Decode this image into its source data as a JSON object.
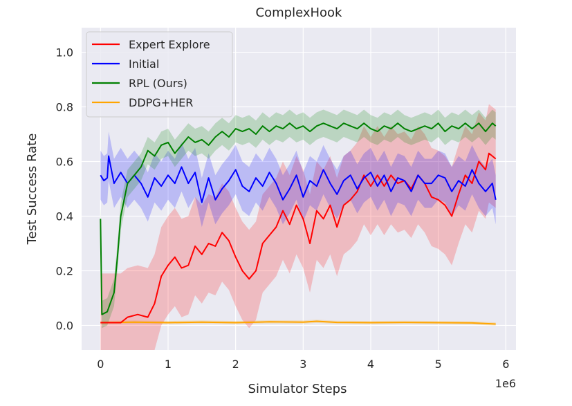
{
  "chart_data": {
    "type": "line",
    "title": "ComplexHook",
    "xlabel": "Simulator Steps",
    "ylabel": "Test Success Rate",
    "x_multiplier_label": "1e6",
    "xlim": [
      -0.28,
      6.15
    ],
    "ylim": [
      -0.09,
      1.09
    ],
    "x_ticks": [
      0,
      1,
      2,
      3,
      4,
      5,
      6
    ],
    "y_ticks": [
      0.0,
      0.2,
      0.4,
      0.6,
      0.8,
      1.0
    ],
    "x_tick_labels": [
      "0",
      "1",
      "2",
      "3",
      "4",
      "5",
      "6"
    ],
    "y_tick_labels": [
      "0.0",
      "0.2",
      "0.4",
      "0.6",
      "0.8",
      "1.0"
    ],
    "grid": true,
    "background": "#eaeaf2",
    "legend_position": "top-left",
    "series": [
      {
        "name": "Expert Explore",
        "color": "#ff0000",
        "band": 0.18,
        "points": [
          [
            0,
            0.01
          ],
          [
            0.3,
            0.01
          ],
          [
            0.4,
            0.03
          ],
          [
            0.55,
            0.04
          ],
          [
            0.7,
            0.03
          ],
          [
            0.8,
            0.08
          ],
          [
            0.9,
            0.18
          ],
          [
            1.0,
            0.22
          ],
          [
            1.1,
            0.25
          ],
          [
            1.2,
            0.21
          ],
          [
            1.3,
            0.22
          ],
          [
            1.4,
            0.29
          ],
          [
            1.5,
            0.26
          ],
          [
            1.6,
            0.3
          ],
          [
            1.7,
            0.29
          ],
          [
            1.8,
            0.34
          ],
          [
            1.9,
            0.31
          ],
          [
            2.0,
            0.25
          ],
          [
            2.1,
            0.2
          ],
          [
            2.2,
            0.17
          ],
          [
            2.3,
            0.2
          ],
          [
            2.4,
            0.3
          ],
          [
            2.5,
            0.33
          ],
          [
            2.6,
            0.36
          ],
          [
            2.7,
            0.42
          ],
          [
            2.8,
            0.37
          ],
          [
            2.9,
            0.44
          ],
          [
            3.0,
            0.39
          ],
          [
            3.1,
            0.3
          ],
          [
            3.2,
            0.42
          ],
          [
            3.3,
            0.39
          ],
          [
            3.4,
            0.44
          ],
          [
            3.5,
            0.36
          ],
          [
            3.6,
            0.44
          ],
          [
            3.7,
            0.46
          ],
          [
            3.8,
            0.49
          ],
          [
            3.9,
            0.55
          ],
          [
            4.0,
            0.51
          ],
          [
            4.1,
            0.55
          ],
          [
            4.2,
            0.51
          ],
          [
            4.3,
            0.55
          ],
          [
            4.4,
            0.52
          ],
          [
            4.5,
            0.53
          ],
          [
            4.6,
            0.5
          ],
          [
            4.7,
            0.55
          ],
          [
            4.8,
            0.52
          ],
          [
            4.9,
            0.47
          ],
          [
            5.0,
            0.46
          ],
          [
            5.1,
            0.44
          ],
          [
            5.2,
            0.4
          ],
          [
            5.3,
            0.48
          ],
          [
            5.4,
            0.55
          ],
          [
            5.5,
            0.52
          ],
          [
            5.6,
            0.6
          ],
          [
            5.7,
            0.57
          ],
          [
            5.75,
            0.63
          ],
          [
            5.8,
            0.62
          ],
          [
            5.85,
            0.61
          ]
        ]
      },
      {
        "name": "Initial",
        "color": "#0000ff",
        "band": 0.09,
        "points": [
          [
            0,
            0.55
          ],
          [
            0.05,
            0.53
          ],
          [
            0.1,
            0.54
          ],
          [
            0.12,
            0.62
          ],
          [
            0.2,
            0.52
          ],
          [
            0.3,
            0.56
          ],
          [
            0.4,
            0.52
          ],
          [
            0.5,
            0.55
          ],
          [
            0.6,
            0.52
          ],
          [
            0.7,
            0.47
          ],
          [
            0.8,
            0.54
          ],
          [
            0.9,
            0.51
          ],
          [
            1.0,
            0.55
          ],
          [
            1.1,
            0.52
          ],
          [
            1.2,
            0.58
          ],
          [
            1.3,
            0.52
          ],
          [
            1.4,
            0.56
          ],
          [
            1.5,
            0.45
          ],
          [
            1.6,
            0.54
          ],
          [
            1.7,
            0.46
          ],
          [
            1.8,
            0.5
          ],
          [
            1.9,
            0.53
          ],
          [
            2.0,
            0.57
          ],
          [
            2.1,
            0.51
          ],
          [
            2.2,
            0.49
          ],
          [
            2.3,
            0.54
          ],
          [
            2.4,
            0.51
          ],
          [
            2.5,
            0.56
          ],
          [
            2.6,
            0.52
          ],
          [
            2.7,
            0.46
          ],
          [
            2.8,
            0.5
          ],
          [
            2.9,
            0.55
          ],
          [
            3.0,
            0.47
          ],
          [
            3.1,
            0.53
          ],
          [
            3.2,
            0.51
          ],
          [
            3.3,
            0.57
          ],
          [
            3.4,
            0.52
          ],
          [
            3.5,
            0.48
          ],
          [
            3.6,
            0.53
          ],
          [
            3.7,
            0.55
          ],
          [
            3.8,
            0.5
          ],
          [
            3.9,
            0.54
          ],
          [
            4.0,
            0.56
          ],
          [
            4.1,
            0.51
          ],
          [
            4.2,
            0.55
          ],
          [
            4.3,
            0.49
          ],
          [
            4.4,
            0.54
          ],
          [
            4.5,
            0.53
          ],
          [
            4.6,
            0.49
          ],
          [
            4.7,
            0.55
          ],
          [
            4.8,
            0.52
          ],
          [
            4.9,
            0.52
          ],
          [
            5.0,
            0.55
          ],
          [
            5.1,
            0.54
          ],
          [
            5.2,
            0.49
          ],
          [
            5.3,
            0.53
          ],
          [
            5.4,
            0.51
          ],
          [
            5.5,
            0.57
          ],
          [
            5.6,
            0.52
          ],
          [
            5.7,
            0.49
          ],
          [
            5.8,
            0.52
          ],
          [
            5.85,
            0.46
          ]
        ]
      },
      {
        "name": "RPL (Ours)",
        "color": "#008000",
        "band": 0.05,
        "points": [
          [
            0,
            0.39
          ],
          [
            0.02,
            0.04
          ],
          [
            0.1,
            0.05
          ],
          [
            0.2,
            0.12
          ],
          [
            0.25,
            0.25
          ],
          [
            0.3,
            0.4
          ],
          [
            0.4,
            0.52
          ],
          [
            0.5,
            0.55
          ],
          [
            0.6,
            0.58
          ],
          [
            0.7,
            0.64
          ],
          [
            0.8,
            0.62
          ],
          [
            0.9,
            0.66
          ],
          [
            1.0,
            0.67
          ],
          [
            1.1,
            0.63
          ],
          [
            1.2,
            0.66
          ],
          [
            1.3,
            0.69
          ],
          [
            1.4,
            0.67
          ],
          [
            1.5,
            0.68
          ],
          [
            1.6,
            0.66
          ],
          [
            1.7,
            0.69
          ],
          [
            1.8,
            0.71
          ],
          [
            1.9,
            0.69
          ],
          [
            2.0,
            0.72
          ],
          [
            2.1,
            0.71
          ],
          [
            2.2,
            0.72
          ],
          [
            2.3,
            0.7
          ],
          [
            2.4,
            0.73
          ],
          [
            2.5,
            0.71
          ],
          [
            2.6,
            0.73
          ],
          [
            2.7,
            0.72
          ],
          [
            2.8,
            0.74
          ],
          [
            2.9,
            0.72
          ],
          [
            3.0,
            0.73
          ],
          [
            3.1,
            0.71
          ],
          [
            3.2,
            0.73
          ],
          [
            3.3,
            0.74
          ],
          [
            3.4,
            0.73
          ],
          [
            3.5,
            0.72
          ],
          [
            3.6,
            0.74
          ],
          [
            3.7,
            0.73
          ],
          [
            3.8,
            0.72
          ],
          [
            3.9,
            0.74
          ],
          [
            4.0,
            0.72
          ],
          [
            4.1,
            0.71
          ],
          [
            4.2,
            0.73
          ],
          [
            4.3,
            0.72
          ],
          [
            4.4,
            0.74
          ],
          [
            4.5,
            0.72
          ],
          [
            4.6,
            0.71
          ],
          [
            4.7,
            0.72
          ],
          [
            4.8,
            0.73
          ],
          [
            4.9,
            0.72
          ],
          [
            5.0,
            0.74
          ],
          [
            5.1,
            0.71
          ],
          [
            5.2,
            0.73
          ],
          [
            5.3,
            0.72
          ],
          [
            5.4,
            0.74
          ],
          [
            5.5,
            0.72
          ],
          [
            5.6,
            0.74
          ],
          [
            5.7,
            0.71
          ],
          [
            5.8,
            0.74
          ],
          [
            5.85,
            0.73
          ]
        ]
      },
      {
        "name": "DDPG+HER",
        "color": "#ffa500",
        "band": 0.006,
        "points": [
          [
            0,
            0.01
          ],
          [
            0.5,
            0.012
          ],
          [
            1.0,
            0.01
          ],
          [
            1.5,
            0.012
          ],
          [
            2.0,
            0.01
          ],
          [
            2.5,
            0.013
          ],
          [
            3.0,
            0.012
          ],
          [
            3.2,
            0.015
          ],
          [
            3.5,
            0.011
          ],
          [
            4.0,
            0.01
          ],
          [
            4.5,
            0.011
          ],
          [
            5.0,
            0.01
          ],
          [
            5.5,
            0.009
          ],
          [
            5.85,
            0.005
          ]
        ]
      }
    ]
  }
}
